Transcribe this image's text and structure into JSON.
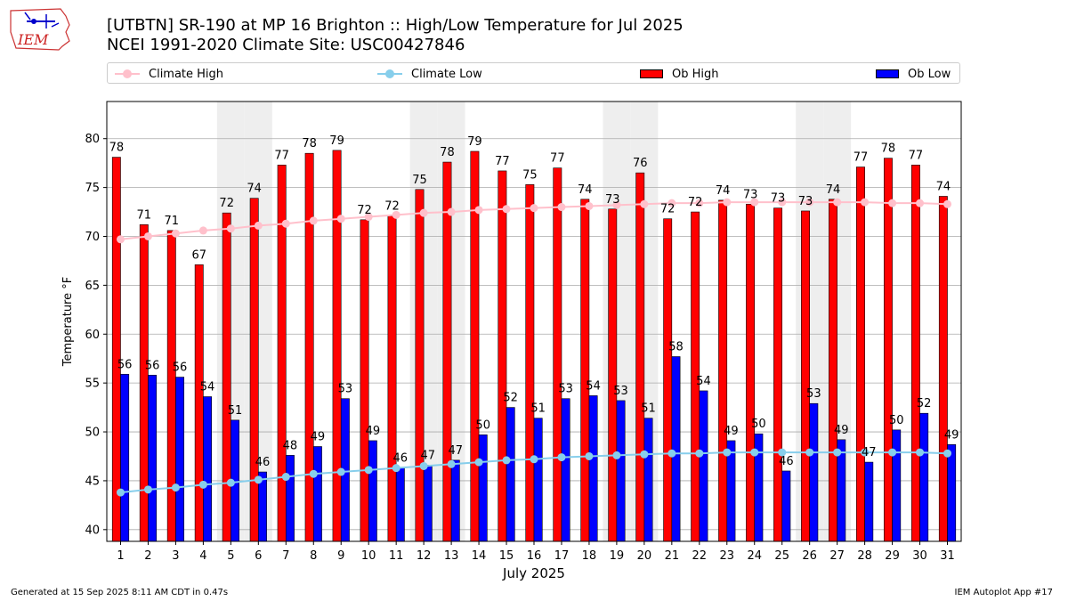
{
  "header": {
    "title_line1": "[UTBTN] SR-190 at MP 16 Brighton  :: High/Low Temperature for Jul 2025",
    "title_line2": "NCEI 1991-2020 Climate Site: USC00427846",
    "logo_text": "IEM"
  },
  "legend": {
    "climate_high": "Climate High",
    "climate_low": "Climate Low",
    "ob_high": "Ob High",
    "ob_low": "Ob Low"
  },
  "colors": {
    "ob_high": "#ff0000",
    "ob_low": "#0000ff",
    "climate_high": "#ffc0cb",
    "climate_low": "#87ceeb",
    "weekend_band": "#eeeeee",
    "grid": "#aaaaaa"
  },
  "footer": {
    "left": "Generated at 15 Sep 2025 8:11 AM CDT in 0.47s",
    "right": "IEM Autoplot App #17"
  },
  "chart_data": {
    "type": "bar",
    "xlabel": "July 2025",
    "ylabel": "Temperature °F",
    "ylim": [
      38.8,
      83.8
    ],
    "yticks": [
      40,
      45,
      50,
      55,
      60,
      65,
      70,
      75,
      80
    ],
    "grid": true,
    "legend_position": "top",
    "categories": [
      "1",
      "2",
      "3",
      "4",
      "5",
      "6",
      "7",
      "8",
      "9",
      "10",
      "11",
      "12",
      "13",
      "14",
      "15",
      "16",
      "17",
      "18",
      "19",
      "20",
      "21",
      "22",
      "23",
      "24",
      "25",
      "26",
      "27",
      "28",
      "29",
      "30",
      "31"
    ],
    "weekend_days": [
      5,
      6,
      12,
      13,
      19,
      20,
      26,
      27
    ],
    "series": [
      {
        "name": "Ob High",
        "kind": "bar",
        "values": [
          78.1,
          71.2,
          70.6,
          67.1,
          72.4,
          73.9,
          77.3,
          78.5,
          78.8,
          71.7,
          72.1,
          74.8,
          77.6,
          78.7,
          76.7,
          75.3,
          77.0,
          73.8,
          72.8,
          76.5,
          71.8,
          72.5,
          73.7,
          73.3,
          72.9,
          72.6,
          73.8,
          77.1,
          78.0,
          77.3,
          74.1
        ],
        "labels": [
          "78",
          "71",
          "71",
          "67",
          "72",
          "74",
          "77",
          "78",
          "79",
          "72",
          "72",
          "75",
          "78",
          "79",
          "77",
          "75",
          "77",
          "74",
          "73",
          "76",
          "72",
          "72",
          "74",
          "73",
          "73",
          "73",
          "74",
          "77",
          "78",
          "77",
          "74"
        ]
      },
      {
        "name": "Ob Low",
        "kind": "bar",
        "values": [
          55.9,
          55.8,
          55.6,
          53.6,
          51.2,
          45.9,
          47.6,
          48.5,
          53.4,
          49.1,
          46.3,
          46.6,
          47.1,
          49.7,
          52.5,
          51.4,
          53.4,
          53.7,
          53.2,
          51.4,
          57.7,
          54.2,
          49.1,
          49.8,
          46.0,
          52.9,
          49.2,
          46.9,
          50.2,
          51.9,
          48.7
        ],
        "labels": [
          "56",
          "56",
          "56",
          "54",
          "51",
          "46",
          "48",
          "49",
          "53",
          "49",
          "46",
          "47",
          "47",
          "50",
          "52",
          "51",
          "53",
          "54",
          "53",
          "51",
          "58",
          "54",
          "49",
          "50",
          "46",
          "53",
          "49",
          "47",
          "50",
          "52",
          "49"
        ]
      },
      {
        "name": "Climate High",
        "kind": "line",
        "values": [
          69.7,
          70.0,
          70.3,
          70.6,
          70.8,
          71.1,
          71.3,
          71.6,
          71.8,
          72.0,
          72.2,
          72.4,
          72.5,
          72.7,
          72.8,
          72.9,
          73.0,
          73.1,
          73.2,
          73.3,
          73.4,
          73.4,
          73.5,
          73.5,
          73.5,
          73.5,
          73.5,
          73.5,
          73.4,
          73.4,
          73.3
        ]
      },
      {
        "name": "Climate Low",
        "kind": "line",
        "values": [
          43.8,
          44.1,
          44.3,
          44.6,
          44.8,
          45.1,
          45.4,
          45.7,
          45.9,
          46.1,
          46.3,
          46.5,
          46.7,
          46.9,
          47.1,
          47.2,
          47.4,
          47.5,
          47.6,
          47.7,
          47.8,
          47.8,
          47.9,
          47.9,
          47.9,
          47.9,
          47.9,
          47.9,
          47.9,
          47.9,
          47.8
        ]
      }
    ]
  }
}
